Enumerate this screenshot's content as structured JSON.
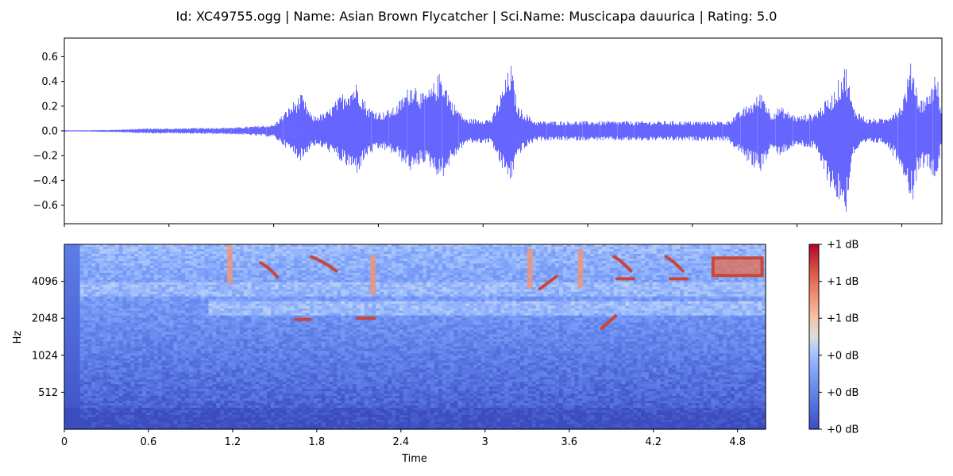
{
  "title": "Id: XC49755.ogg | Name: Asian Brown Flycatcher | Sci.Name: Muscicapa dauurica | Rating: 5.0",
  "colors": {
    "waveform": "#0000ff",
    "cmap_low": "#3b4cc0",
    "cmap_mid": "#dddddd",
    "cmap_high": "#b40426"
  },
  "chart_data": [
    {
      "type": "line",
      "name": "waveform",
      "ylim": [
        -0.75,
        0.75
      ],
      "xlim": [
        0,
        5.03
      ],
      "yticks": [
        -0.6,
        -0.4,
        -0.2,
        0.0,
        0.2,
        0.4,
        0.6
      ],
      "ytick_labels": [
        "−0.6",
        "−0.4",
        "−0.2",
        "0.0",
        "0.2",
        "0.4",
        "0.6"
      ],
      "xticks": [
        0,
        0.6,
        1.2,
        1.8,
        2.4,
        3.0,
        3.6,
        4.2,
        4.8
      ],
      "envelope": {
        "t": [
          0.0,
          0.1,
          0.3,
          0.45,
          0.6,
          0.8,
          1.0,
          1.1,
          1.2,
          1.32,
          1.36,
          1.42,
          1.5,
          1.62,
          1.68,
          1.74,
          1.82,
          1.9,
          2.0,
          2.05,
          2.1,
          2.16,
          2.22,
          2.3,
          2.45,
          2.5,
          2.56,
          2.6,
          2.7,
          2.8,
          3.0,
          3.2,
          3.4,
          3.6,
          3.8,
          3.95,
          4.0,
          4.05,
          4.1,
          4.2,
          4.3,
          4.4,
          4.48,
          4.52,
          4.6,
          4.7,
          4.8,
          4.86,
          4.9,
          4.95,
          5.0,
          5.03
        ],
        "pos": [
          0.005,
          0.005,
          0.01,
          0.02,
          0.02,
          0.025,
          0.03,
          0.04,
          0.05,
          0.25,
          0.3,
          0.12,
          0.15,
          0.35,
          0.4,
          0.2,
          0.15,
          0.2,
          0.42,
          0.3,
          0.35,
          0.5,
          0.25,
          0.1,
          0.1,
          0.3,
          0.55,
          0.2,
          0.08,
          0.08,
          0.08,
          0.08,
          0.08,
          0.08,
          0.08,
          0.25,
          0.33,
          0.15,
          0.2,
          0.12,
          0.15,
          0.3,
          0.55,
          0.2,
          0.1,
          0.1,
          0.22,
          0.6,
          0.25,
          0.3,
          0.5,
          0.1
        ],
        "neg": [
          0.005,
          0.005,
          0.01,
          0.02,
          0.02,
          0.025,
          0.03,
          0.04,
          0.05,
          0.2,
          0.25,
          0.12,
          0.15,
          0.3,
          0.35,
          0.2,
          0.15,
          0.2,
          0.35,
          0.25,
          0.3,
          0.4,
          0.25,
          0.1,
          0.1,
          0.3,
          0.42,
          0.2,
          0.08,
          0.08,
          0.08,
          0.08,
          0.08,
          0.08,
          0.08,
          0.3,
          0.33,
          0.15,
          0.2,
          0.12,
          0.15,
          0.5,
          0.68,
          0.2,
          0.1,
          0.1,
          0.3,
          0.6,
          0.3,
          0.3,
          0.4,
          0.1
        ]
      }
    },
    {
      "type": "heatmap",
      "name": "spectrogram",
      "xlabel": "Time",
      "ylabel": "Hz",
      "xlim": [
        0,
        5.0
      ],
      "xticks": [
        0,
        0.6,
        1.2,
        1.8,
        2.4,
        3.0,
        3.6,
        4.2,
        4.8
      ],
      "xtick_labels": [
        "0",
        "0.6",
        "1.2",
        "1.8",
        "2.4",
        "3",
        "3.6",
        "4.2",
        "4.8"
      ],
      "y_scale": "log2",
      "ylim_hz": [
        256,
        8192
      ],
      "yticks_hz": [
        512,
        1024,
        2048,
        4096
      ],
      "ytick_labels": [
        "512",
        "1024",
        "2048",
        "4096"
      ],
      "colorbar": {
        "ticks": [
          0,
          0.2,
          0.4,
          0.6,
          0.8,
          1.0
        ],
        "tick_labels": [
          "+0 dB",
          "+0 dB",
          "+0 dB",
          "+1 dB",
          "+1 dB",
          "+1 dB"
        ]
      },
      "calls": [
        {
          "t": 1.18,
          "hz": 5600,
          "dur": 0.06,
          "kind": "vert"
        },
        {
          "t": 1.46,
          "hz": 5000,
          "dur": 0.12,
          "kind": "down"
        },
        {
          "t": 1.85,
          "hz": 5600,
          "dur": 0.18,
          "kind": "down"
        },
        {
          "t": 2.2,
          "hz": 4600,
          "dur": 0.05,
          "kind": "vert"
        },
        {
          "t": 1.7,
          "hz": 2000,
          "dur": 0.1,
          "kind": "flat"
        },
        {
          "t": 2.15,
          "hz": 2050,
          "dur": 0.12,
          "kind": "flat"
        },
        {
          "t": 3.32,
          "hz": 5200,
          "dur": 0.08,
          "kind": "vert"
        },
        {
          "t": 3.45,
          "hz": 4000,
          "dur": 0.12,
          "kind": "up"
        },
        {
          "t": 3.68,
          "hz": 5200,
          "dur": 0.08,
          "kind": "vert"
        },
        {
          "t": 3.98,
          "hz": 5600,
          "dur": 0.12,
          "kind": "down"
        },
        {
          "t": 4.0,
          "hz": 4300,
          "dur": 0.12,
          "kind": "flat"
        },
        {
          "t": 4.35,
          "hz": 5600,
          "dur": 0.12,
          "kind": "down"
        },
        {
          "t": 4.38,
          "hz": 4300,
          "dur": 0.12,
          "kind": "flat"
        },
        {
          "t": 3.88,
          "hz": 1900,
          "dur": 0.1,
          "kind": "up"
        },
        {
          "t": 4.8,
          "hz": 5800,
          "dur": 0.35,
          "kind": "patch"
        }
      ]
    }
  ]
}
